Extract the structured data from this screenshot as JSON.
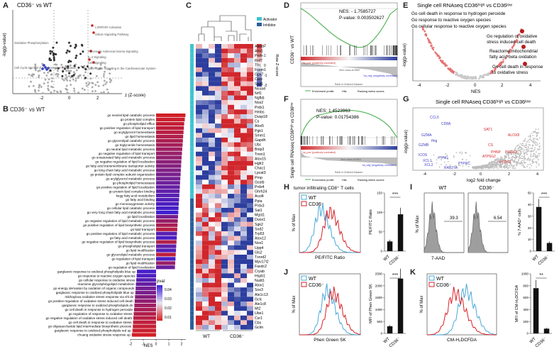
{
  "panel_letters": {
    "A": "A",
    "B": "B",
    "C": "C",
    "D": "D",
    "E": "E",
    "F": "F",
    "G": "G",
    "H": "H",
    "I": "I",
    "J": "J",
    "K": "K"
  },
  "panelA": {
    "title": "CD36⁻ vs WT",
    "ylabel": "-log(p-value)",
    "xlabel": "z (Z-score)",
    "x_ticks": [
      "-2",
      "0",
      "2"
    ],
    "labels_right": [
      "LXR/RXR Activation",
      "Sirtuin Signaling Pathway",
      "Pancreatic Adenocarcinoma Signaling",
      "IL-4 Signaling",
      "Cell Signaling",
      "Nitric Oxide Signaling in the Cardiovascular System"
    ],
    "labels_left": [
      "Oxidative Phosphorylation",
      "Cell Cycle Control of Chromosomal Replication"
    ]
  },
  "panelB": {
    "title": "CD36⁻ vs WT",
    "xlabel": "NES",
    "x_ticks": [
      "-2",
      "-1",
      "0",
      "1",
      "2"
    ],
    "legend_title": "pval",
    "legend_ticks": [
      "0.04",
      "0.03",
      "0.02",
      "0.01"
    ],
    "terms": [
      "go neutral lipid catabolic process",
      "go protein lipid complex",
      "go phospholipid efflux",
      "go positive regulation of lipid transport",
      "go acylglycerol homeostasis",
      "go lipid homeostasis",
      "go glycerolipid catabolic process",
      "go triglyceride homeostasis",
      "go neutral lipid metabolic process",
      "go negative regulation of lipid transport",
      "go unsaturated fatty acid metabolic process",
      "go negative regulation of lipid localization",
      "go fatty acid transmembrane transporter activity",
      "go long chain fatty acid metabolic process",
      "go protein lipid complex subunit organization",
      "go acylglycerol metabolic process",
      "go phospholipid homeostasis",
      "go positive regulation of lipid localization",
      "go protein lipid complex binding",
      "kegg fatty acid metabolism",
      "go fatty acid binding",
      "go monooxygenase activity",
      "go cellular lipid catabolic process",
      "go very long chain fatty acid metabolic process",
      "go lipid localization",
      "go negative regulation of lipid metabolic process",
      "go positive regulation of lipid biosynthetic process",
      "go lipid transport",
      "go positive regulation of lipid metabolic process",
      "go fatty acid metabolic process",
      "go negative regulation of lipid biosynthetic process",
      "go phospholipid transport",
      "go lipid modification",
      "go glycerolipid metabolic process",
      "go regulation of lipid transport",
      "go lipid modification",
      "go regulation of lipid localization",
      "garglaovic response to oxidized phospholipids blue up",
      "go response to reactive oxygen species",
      "go cellular response to oxidative stress",
      "reactome glycosphingolipid metabolism",
      "go energy derivation by oxidation of organic compounds",
      "garglaovic response to oxidized phospholipids blue up",
      "mikhaylova oxidative stress response via vhl dn",
      "go positive regulation of oxidative stress induced cell death",
      "garglaovic response to oxidized phospholipids dn",
      "go cell death in response to hydrogen peroxide",
      "go regulation of response to oxidative stress",
      "go negative regulation of oxidative stress induced cell death",
      "go cell death in response to oxidative stress",
      "go oligosaccharide lipid intermediate biosynthetic process",
      "garglaovic response to oxidized phospholipids red up",
      "chuang oxidative stress response up"
    ],
    "nes": [
      2.3,
      2.25,
      2.2,
      2.18,
      2.15,
      2.12,
      2.1,
      2.08,
      2.05,
      2.03,
      2.0,
      1.98,
      1.96,
      1.94,
      1.92,
      1.9,
      1.88,
      1.86,
      1.84,
      1.82,
      1.8,
      1.78,
      1.76,
      1.74,
      1.72,
      1.7,
      1.68,
      1.66,
      1.64,
      1.62,
      1.6,
      1.58,
      1.56,
      1.54,
      1.52,
      1.5,
      1.48,
      -1.5,
      -1.52,
      -1.55,
      -1.58,
      -1.6,
      -1.62,
      -1.65,
      -1.68,
      -1.7,
      -1.72,
      -1.75,
      -1.78,
      -1.8,
      -1.82,
      -1.85,
      -1.9
    ],
    "pval": [
      0.002,
      0.004,
      0.006,
      0.008,
      0.01,
      0.012,
      0.014,
      0.016,
      0.018,
      0.02,
      0.022,
      0.024,
      0.026,
      0.028,
      0.03,
      0.032,
      0.034,
      0.036,
      0.038,
      0.04,
      0.042,
      0.044,
      0.046,
      0.048,
      0.03,
      0.02,
      0.015,
      0.01,
      0.04,
      0.045,
      0.012,
      0.038,
      0.042,
      0.008,
      0.046,
      0.02,
      0.035,
      0.046,
      0.044,
      0.04,
      0.036,
      0.032,
      0.03,
      0.026,
      0.022,
      0.018,
      0.015,
      0.012,
      0.01,
      0.008,
      0.006,
      0.004,
      0.002
    ]
  },
  "panelC": {
    "legend": [
      "Activator",
      "Inhibitor"
    ],
    "zscore_label": "Row Z-score",
    "z_ticks": [
      "2",
      "1",
      "0",
      "-1",
      "-2"
    ],
    "group_labels": [
      "WT",
      "CD36⁻"
    ],
    "genes": [
      "Alox8",
      "Aox1",
      "Pxdn",
      "Rnf7",
      "Tfrc",
      "Foxm1",
      "Gpx7",
      "Cars",
      "Sod1",
      "Ncoa4",
      "Nrf1",
      "Ngfkb",
      "Nos2",
      "Prdx1",
      "Hmbs",
      "Dusp18",
      "Cs",
      "Alox5",
      "Pgk1",
      "Smm1",
      "Gapdh",
      "Ubc",
      "Bnip3",
      "Tmm1",
      "Alox15",
      "Hgfr2",
      "Chac1",
      "Lpcat3",
      "Prnp",
      "Gsstb",
      "Prdx4",
      "Ghrh24",
      "Acsl4",
      "Ppia",
      "Prdx3",
      "Sat1",
      "Mgst1",
      "Duox1",
      "Sgk2",
      "Sod2",
      "Trp53",
      "Alox12",
      "Nox1",
      "Upp4",
      "Gls2",
      "Txnrd2",
      "Mpv17l2",
      "Faxdc2",
      "Cryab",
      "Hspb1",
      "Nudt1",
      "Atox1",
      "Sox3",
      "Ale1c13",
      "Gclc",
      "Ale1c8",
      "Mt2",
      "Ube1",
      "Csr1",
      "Cbs",
      "Gclm"
    ]
  },
  "panelD": {
    "ylabel": "CD36⁻ vs WT",
    "nes": "NES: - 1.7585727",
    "pvalue": "P-value: 0.003502627",
    "legend": [
      "Enrichment profile",
      "Hits",
      "Ranking metric scores"
    ],
    "tag_pos": "'na_pos' (positively correlated)",
    "tag_neg": "'na_neg' (negatively correlated)",
    "zero_cross": "Zero cross at 9962",
    "x_axis": "Rank in Ordered Dataset"
  },
  "panelE": {
    "title": "Single cell RNAseq CD36ʰⁱᵍʰ vs CD36ˡᵒʷ",
    "terms_left": [
      "Go cell death in response to hydrogen peroxide",
      "Go response to reactive oxygen species",
      "Go cellular response to reactive oxygen species"
    ],
    "terms_right": [
      "Go regulation of oxidative",
      "stress induced cell death",
      "Reactome mitochondrial",
      "fatty acid beta oxidation",
      "Go cell death in response",
      "to oxidative stress"
    ],
    "ylabel": "-log(p-value)",
    "xlabel": "NES",
    "x_ticks": [
      "-4",
      "-2",
      "0",
      "2",
      "4"
    ]
  },
  "panelF": {
    "ylabel": "Single cell RNAseq CD36ʰⁱᵍʰ vs CD36ˡᵒʷ",
    "nes": "NES: 1.4523963",
    "pvalue": "P-value: 0.01754386",
    "legend": [
      "Enrichment profile",
      "Hits",
      "Ranking metric scores"
    ],
    "tag_pos": "'na_pos' (positively correlated)",
    "tag_neg": "'na_neg' (negatively correlated)",
    "zero_cross": "Zero cross at 8341",
    "x_axis": "Rank in Ordered Dataset"
  },
  "panelG": {
    "title": "Single cell RNAseq CD36ʰⁱᵍʰ vs CD36ˡᵒʷ",
    "ylabel": "-log(p-value)",
    "xlabel": "log2 fold change",
    "x_ticks": [
      "-4",
      "-2",
      "0",
      "2",
      "4"
    ],
    "blue_genes": [
      "CCL5",
      "CD8A",
      "GZMA",
      "Ifng",
      "GZMB",
      "XCL1",
      "XCL2",
      "ICOS",
      "PFNG",
      "RAB27A",
      "PTPRC"
    ],
    "red_genes": [
      "SAT1",
      "ALOX8",
      "CS",
      "PHNP",
      "ATP5G2",
      "PRDX3",
      "PTGS2"
    ]
  },
  "panelH": {
    "title": "tumor infiltrating CD8⁺ T cells",
    "legend": [
      "WT",
      "CD36⁻"
    ],
    "ylabel": "% of Max",
    "xlabel": "PE/FITC Ratio",
    "bar_ylabel": "PE/FITC Ratio",
    "bar_ticks": [
      "0",
      "50",
      "100",
      "150"
    ],
    "bar_ylim": [
      0,
      150
    ],
    "bars": [
      {
        "name": "WT",
        "value": 25
      },
      {
        "name": "CD36⁻",
        "value": 95
      }
    ],
    "sig": "***"
  },
  "panelI": {
    "groups": [
      "WT",
      "CD36⁻"
    ],
    "gate_values": [
      "39.3",
      "6.54"
    ],
    "ylabel": "% of Max",
    "xlabel": "7-AAD",
    "bar_ylabel": "% 7-AAD⁺ cells",
    "bar_ticks": [
      "0",
      "10",
      "20",
      "30",
      "40",
      "50"
    ],
    "bar_ylim": [
      0,
      50
    ],
    "bars": [
      {
        "name": "WT",
        "value": 38
      },
      {
        "name": "CD36⁻",
        "value": 7
      }
    ],
    "sig": "***"
  },
  "panelJ": {
    "legend": [
      "WT",
      "CD36⁻"
    ],
    "ylabel": "% of Max",
    "xlabel": "Phen Green SK",
    "bar_ylabel": "MFI of Phen Green SK",
    "bar_ticks": [
      "0",
      "500",
      "1000",
      "1500",
      "2000",
      "2500"
    ],
    "bar_ylim": [
      0,
      2500
    ],
    "bars": [
      {
        "name": "WT",
        "value": 300
      },
      {
        "name": "CD36⁻",
        "value": 2300
      }
    ],
    "sig": "***"
  },
  "panelK": {
    "legend": [
      "WT",
      "CD36⁻"
    ],
    "ylabel": "% of Max",
    "xlabel": "CM-H₂DCFDA",
    "bar_ylabel": "MFI of CM-H₂DCFDA",
    "bar_ticks": [
      "0",
      "200",
      "400",
      "600",
      "800",
      "1000"
    ],
    "bar_ylim": [
      0,
      1000
    ],
    "bars": [
      {
        "name": "WT",
        "value": 760
      },
      {
        "name": "CD36⁻",
        "value": 80
      }
    ],
    "sig": "**"
  },
  "colors": {
    "wt": "#4aa8d8",
    "ko": "#d92027",
    "heat_high": "#d0262b",
    "heat_low": "#2c3e9e",
    "gsea_line": "#4caf50"
  }
}
